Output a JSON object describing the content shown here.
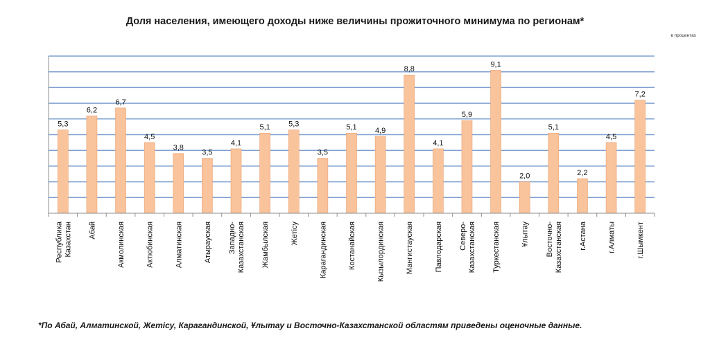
{
  "chart_data": {
    "type": "bar",
    "title": "Доля населения, имеющего доходы ниже величины прожиточного минимума по регионам*",
    "units": "в процентах",
    "footnote": "*По Абай,  Алматинской, Жетісу, Карагандинской,  Ұлытау и Восточно-Казахстанской областям приведены оценочные данные.",
    "categories": [
      [
        "Республика",
        "Казахстан"
      ],
      [
        "Абай"
      ],
      [
        "Акмолинская"
      ],
      [
        "Актюбинская"
      ],
      [
        "Алматинская"
      ],
      [
        "Атырауская"
      ],
      [
        "Западно-",
        "Казахстанская"
      ],
      [
        "Жамбылская"
      ],
      [
        "Жетісу"
      ],
      [
        "Карагандинская"
      ],
      [
        "Костанайская"
      ],
      [
        "Кызылординская"
      ],
      [
        "Мангистауская"
      ],
      [
        "Павлодарская"
      ],
      [
        "Северо-",
        "Казахстанская"
      ],
      [
        "Туркестанская"
      ],
      [
        "Ұлытау"
      ],
      [
        "Восточно-",
        "Казахстанская"
      ],
      [
        "г.Астана"
      ],
      [
        "г.Алматы"
      ],
      [
        "г.Шымкент"
      ]
    ],
    "values": [
      5.3,
      6.2,
      6.7,
      4.5,
      3.8,
      3.5,
      4.1,
      5.1,
      5.3,
      3.5,
      5.1,
      4.9,
      8.8,
      4.1,
      5.9,
      9.1,
      2.0,
      5.1,
      2.2,
      4.5,
      7.2
    ],
    "value_labels": [
      "5,3",
      "6,2",
      "6,7",
      "4,5",
      "3,8",
      "3,5",
      "4,1",
      "5,1",
      "5,3",
      "3,5",
      "5,1",
      "4,9",
      "8,8",
      "4,1",
      "5,9",
      "9,1",
      "2,0",
      "5,1",
      "2,2",
      "4,5",
      "7,2"
    ],
    "ylim": [
      0,
      10
    ],
    "grid": true,
    "colors": {
      "bar": "#f9c39c",
      "bar_border": "#e8a070",
      "grid": "#7fa0d0",
      "axis": "#8c8c8c"
    }
  }
}
